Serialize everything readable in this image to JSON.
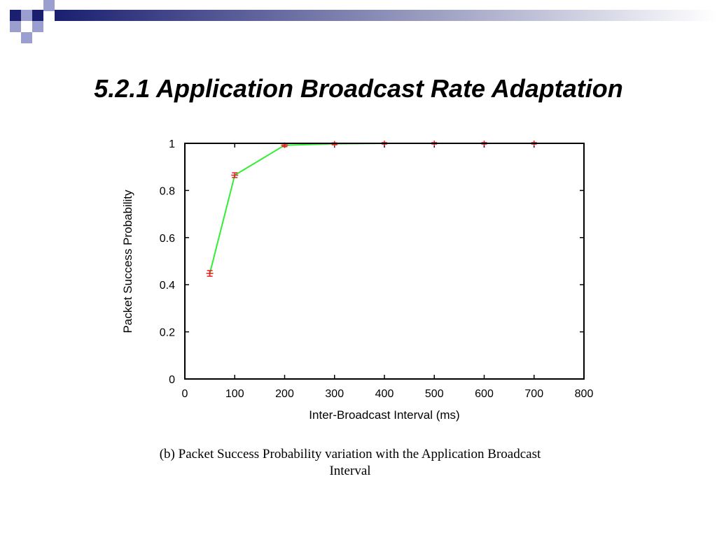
{
  "slide": {
    "title": "5.2.1 Application Broadcast Rate Adaptation",
    "caption_line1": "(b) Packet Success Probability variation with the Application Broadcast",
    "caption_line2": "Interval"
  },
  "decoration": {
    "dark_color": "#1a1f70",
    "light_color": "#9a9fd0",
    "bar_gradient_start": "#1a1f70",
    "bar_gradient_end": "#ffffff"
  },
  "chart_data": {
    "type": "line",
    "xlabel": "Inter-Broadcast Interval (ms)",
    "ylabel": "Packet Success Probability",
    "xlim": [
      0,
      800
    ],
    "ylim": [
      0,
      1
    ],
    "x_ticks": [
      "0",
      "100",
      "200",
      "300",
      "400",
      "500",
      "600",
      "700",
      "800"
    ],
    "y_ticks": [
      "0",
      "0.2",
      "0.4",
      "0.6",
      "0.8",
      "1"
    ],
    "grid": false,
    "series": [
      {
        "line_color": "#33ee33",
        "marker_color": "#e02020",
        "x": [
          50,
          100,
          200,
          300,
          400,
          500,
          600,
          700
        ],
        "y": [
          0.448,
          0.865,
          0.992,
          0.998,
          1.0,
          1.0,
          1.0,
          1.0
        ],
        "error": [
          0.012,
          0.01,
          0.006,
          0.004,
          0.003,
          0.003,
          0.003,
          0.003
        ]
      }
    ]
  }
}
